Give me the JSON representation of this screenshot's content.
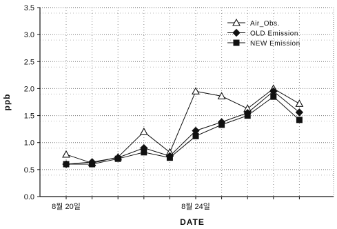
{
  "chart_data": {
    "type": "line",
    "xlabel": "DATE",
    "ylabel": "ppb",
    "ylim": [
      0,
      3.5
    ],
    "y_ticks": [
      "0.0",
      "0.5",
      "1.0",
      "1.5",
      "2.0",
      "2.5",
      "3.0",
      "3.5"
    ],
    "x_ticks": [
      "8월 20일",
      "8월 24일"
    ],
    "grid": true,
    "legend_position": "top-right",
    "series": [
      {
        "name": "Air_Obs.",
        "marker": "triangle-open",
        "values": [
          0.78,
          0.62,
          0.73,
          1.2,
          0.82,
          1.95,
          1.86,
          1.63,
          2.0,
          1.72
        ]
      },
      {
        "name": "OLD Emission",
        "marker": "diamond-filled",
        "values": [
          0.6,
          0.64,
          0.72,
          0.9,
          0.75,
          1.22,
          1.38,
          1.55,
          1.95,
          1.56
        ]
      },
      {
        "name": "NEW Emission",
        "marker": "square-filled",
        "values": [
          0.6,
          0.6,
          0.7,
          0.82,
          0.72,
          1.12,
          1.33,
          1.5,
          1.85,
          1.42
        ]
      }
    ]
  }
}
